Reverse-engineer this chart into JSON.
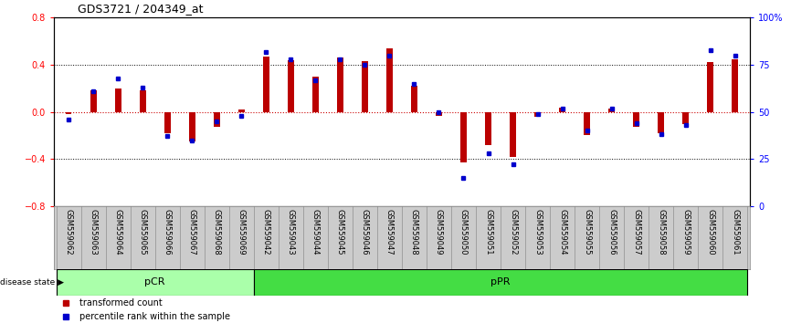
{
  "title": "GDS3721 / 204349_at",
  "samples": [
    "GSM559062",
    "GSM559063",
    "GSM559064",
    "GSM559065",
    "GSM559066",
    "GSM559067",
    "GSM559068",
    "GSM559069",
    "GSM559042",
    "GSM559043",
    "GSM559044",
    "GSM559045",
    "GSM559046",
    "GSM559047",
    "GSM559048",
    "GSM559049",
    "GSM559050",
    "GSM559051",
    "GSM559052",
    "GSM559053",
    "GSM559054",
    "GSM559055",
    "GSM559056",
    "GSM559057",
    "GSM559058",
    "GSM559059",
    "GSM559060",
    "GSM559061"
  ],
  "transformed_count": [
    -0.02,
    0.18,
    0.2,
    0.18,
    -0.18,
    -0.25,
    -0.13,
    0.02,
    0.47,
    0.44,
    0.3,
    0.46,
    0.43,
    0.54,
    0.22,
    -0.03,
    -0.43,
    -0.28,
    -0.38,
    -0.04,
    0.04,
    -0.2,
    0.03,
    -0.13,
    -0.18,
    -0.1,
    0.42,
    0.45
  ],
  "percentile_rank": [
    46,
    61,
    68,
    63,
    37,
    35,
    45,
    48,
    82,
    78,
    67,
    78,
    75,
    80,
    65,
    50,
    15,
    28,
    22,
    49,
    52,
    40,
    52,
    44,
    38,
    43,
    83,
    80
  ],
  "pcr_count": 8,
  "ylim_left": [
    -0.8,
    0.8
  ],
  "ylim_right": [
    0,
    100
  ],
  "yticks_left": [
    -0.8,
    -0.4,
    0.0,
    0.4,
    0.8
  ],
  "yticks_right": [
    0,
    25,
    50,
    75,
    100
  ],
  "bar_color": "#BB0000",
  "dot_color": "#0000CC",
  "zero_line_color": "#CC0000",
  "dotted_line_color": "#000000",
  "bg_color": "#FFFFFF",
  "pcr_color": "#AAFFAA",
  "ppr_color": "#44DD44",
  "tick_bg_color": "#CCCCCC",
  "bar_width": 0.25
}
